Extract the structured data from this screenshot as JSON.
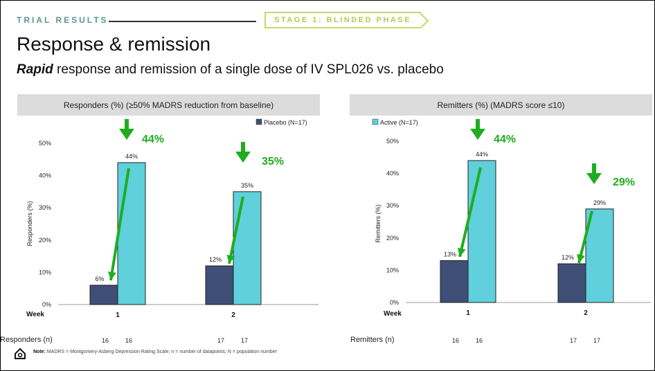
{
  "header": {
    "kicker": "TRIAL RESULTS",
    "stage": "STAGE 1: BLINDED PHASE",
    "title": "Response & remission",
    "subtitle_emph": "Rapid",
    "subtitle_rest": " response and remission of a single dose of IV SPL026 vs. placebo"
  },
  "colors": {
    "placebo": "#3f4f78",
    "active": "#5fd0dc",
    "arrow": "#1fad1f",
    "panel": "#dcdcdc"
  },
  "chart_data": [
    {
      "type": "bar",
      "panel_title": "Responders (%) (≥50% MADRS reduction from baseline)",
      "ylabel": "Responders (%)",
      "xlabel": "Week",
      "legend": "Placebo (N=17)",
      "ylim": [
        0,
        50
      ],
      "yticks": [
        "0%",
        "10%",
        "20%",
        "30%",
        "40%",
        "50%"
      ],
      "categories": [
        "1",
        "2"
      ],
      "series": [
        {
          "name": "Placebo (N=17)",
          "values": [
            6,
            12
          ],
          "labels": [
            "6%",
            "12%"
          ]
        },
        {
          "name": "",
          "values": [
            44,
            35
          ],
          "labels": [
            "44%",
            "35%"
          ]
        }
      ],
      "annotations": [
        "44%",
        "35%"
      ],
      "n_label": "Responders (n)",
      "n_values": [
        [
          "16",
          "16"
        ],
        [
          "17",
          "17"
        ]
      ]
    },
    {
      "type": "bar",
      "panel_title": "Remitters (%) (MADRS score ≤10)",
      "ylabel": "Remitters (%)",
      "xlabel": "Week",
      "legend": "Active (N=17)",
      "ylim": [
        0,
        50
      ],
      "yticks": [
        "0%",
        "10%",
        "20%",
        "30%",
        "40%",
        "50%"
      ],
      "categories": [
        "1",
        "2"
      ],
      "series": [
        {
          "name": "",
          "values": [
            13,
            12
          ],
          "labels": [
            "13%",
            "12%"
          ]
        },
        {
          "name": "Active (N=17)",
          "values": [
            44,
            29
          ],
          "labels": [
            "44%",
            "29%"
          ]
        }
      ],
      "annotations": [
        "44%",
        "29%"
      ],
      "n_label": "Remitters (n)",
      "n_values": [
        [
          "16",
          "16"
        ],
        [
          "17",
          "17"
        ]
      ]
    }
  ],
  "footnote": {
    "label": "Note:",
    "text": " MADRS = Montgomery-Asberg Depression Rating Scale; n = number of datapoints; N = population number"
  }
}
